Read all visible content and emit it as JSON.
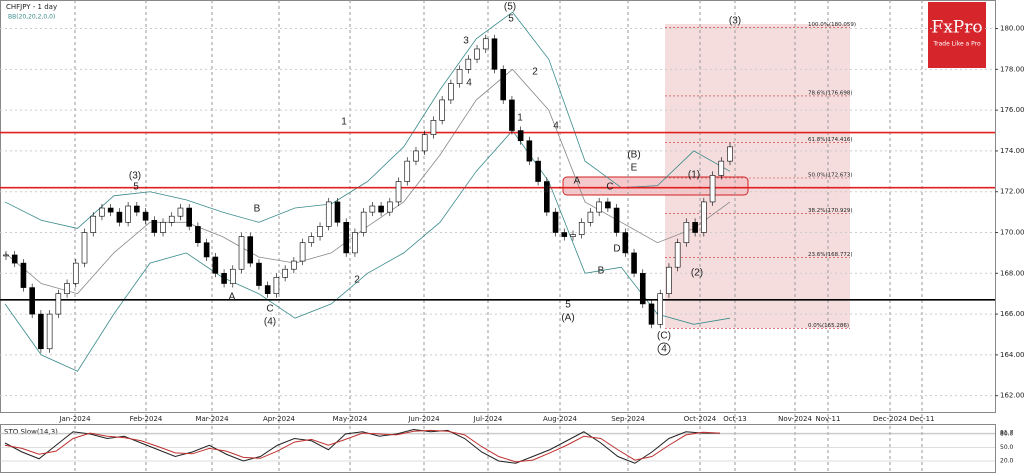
{
  "chart_data": {
    "type": "candlestick",
    "title": "CHFJPY - 1 day",
    "subtitle": "BB(20,20,2,0,0)",
    "brand": {
      "name": "FxPro",
      "tagline": "Trade Like a Pro"
    },
    "xticks": [
      "Jan-2024",
      "Feb-2024",
      "Mar-2024",
      "Apr-2024",
      "May-2024",
      "Jun-2024",
      "Jul-2024",
      "Aug-2024",
      "Sep-2024",
      "Oct-2024",
      "Oct-13",
      "Nov-2024",
      "Nov-11",
      "Dec-2024",
      "Dec-11"
    ],
    "ylim": [
      161.2,
      181.4
    ],
    "yticks": [
      {
        "value": 162,
        "label": "162.000"
      },
      {
        "value": 164,
        "label": "164.000"
      },
      {
        "value": 166,
        "label": "166.000"
      },
      {
        "value": 168,
        "label": "168.000"
      },
      {
        "value": 170,
        "label": "170.000"
      },
      {
        "value": 172,
        "label": "172.000"
      },
      {
        "value": 174,
        "label": "174.000"
      },
      {
        "value": 176,
        "label": "176.000"
      },
      {
        "value": 178,
        "label": "178.000"
      },
      {
        "value": 180,
        "label": "180.000"
      }
    ],
    "grid": true,
    "series": [
      {
        "name": "CHFJPY",
        "values": [
          168.9,
          168.5,
          167.3,
          166.0,
          164.3,
          166.0,
          167.0,
          167.5,
          168.5,
          170.0,
          170.8,
          171.2,
          171.0,
          170.5,
          171.3,
          171.0,
          170.6,
          170.0,
          170.5,
          170.8,
          171.2,
          170.3,
          169.5,
          168.8,
          168.0,
          167.5,
          168.2,
          169.8,
          168.5,
          167.4,
          167.0,
          167.8,
          168.2,
          168.6,
          169.5,
          169.8,
          170.3,
          171.5,
          170.5,
          169.0,
          170.0,
          171.0,
          171.3,
          171.0,
          171.5,
          172.5,
          173.5,
          174.0,
          174.8,
          175.5,
          176.5,
          177.3,
          178.0,
          178.5,
          179.0,
          179.5,
          178.0,
          176.5,
          175.0,
          174.5,
          173.5,
          172.5,
          171.0,
          170.0,
          169.8,
          169.9,
          170.5,
          171.0,
          171.5,
          171.2,
          170.0,
          169.0,
          168.0,
          166.5,
          165.5,
          167.0,
          168.3,
          169.5,
          170.5,
          170.0,
          171.5,
          172.8,
          173.5,
          174.2
        ]
      }
    ],
    "bands": [
      {
        "name": "upper",
        "color": "#3a8a8a",
        "values": [
          171.5,
          170.6,
          170.2,
          171.8,
          172.0,
          171.6,
          171.0,
          170.5,
          171.2,
          171.4,
          172.5,
          174.2,
          177.0,
          179.5,
          180.8,
          178.5,
          173.5,
          172.2,
          172.3,
          174.0,
          173.0
        ]
      },
      {
        "name": "middle",
        "color": "#888888",
        "values": [
          169.0,
          167.5,
          167.0,
          169.0,
          170.5,
          170.5,
          169.8,
          168.8,
          168.5,
          169.0,
          170.3,
          171.5,
          173.8,
          176.5,
          178.0,
          176.0,
          171.5,
          170.5,
          169.5,
          170.2,
          171.5
        ]
      },
      {
        "name": "lower",
        "color": "#3a8a8a",
        "values": [
          166.5,
          164.0,
          163.2,
          166.0,
          168.5,
          169.0,
          167.8,
          167.0,
          165.8,
          166.5,
          168.0,
          169.0,
          170.5,
          173.0,
          175.0,
          172.5,
          168.0,
          168.3,
          166.0,
          165.5,
          165.8
        ]
      }
    ],
    "levels": [
      {
        "value": 174.9,
        "color": "#e02020"
      },
      {
        "value": 172.2,
        "color": "#e02020"
      },
      {
        "value": 166.7,
        "color": "#000000"
      }
    ],
    "fib": [
      {
        "value": 180.059,
        "label": "100.0%(180.059)"
      },
      {
        "value": 176.698,
        "label": "78.6%(176.698)"
      },
      {
        "value": 174.416,
        "label": "61.8%(174.416)"
      },
      {
        "value": 172.673,
        "label": "50.0%(172.673)"
      },
      {
        "value": 170.929,
        "label": "38.2%(170.929)"
      },
      {
        "value": 168.772,
        "label": "23.6%(168.772)"
      },
      {
        "value": 165.286,
        "label": "0.0%(165.286)"
      }
    ],
    "annotations": [
      "(5)",
      "5",
      "3",
      "4",
      "2",
      "1",
      "4",
      "3",
      "5",
      "(A)",
      "A",
      "C",
      "(B)",
      "E",
      "D",
      "B",
      "(1)",
      "(2)",
      "(C)",
      "4",
      "(3)",
      "1",
      "2",
      "(3)",
      "5",
      "B",
      "A",
      "C",
      "(4)"
    ],
    "oscillator": {
      "title": "STO Slow(14,3)",
      "ylim": [
        0,
        100
      ],
      "yticks": [
        {
          "value": 81.7,
          "label": "81.7"
        },
        {
          "value": 80,
          "label": "80.0"
        },
        {
          "value": 50,
          "label": "50.0"
        },
        {
          "value": 20,
          "label": "20.0"
        }
      ],
      "series": [
        {
          "name": "%K",
          "color": "#222222",
          "values": [
            60,
            40,
            25,
            55,
            85,
            80,
            70,
            75,
            60,
            45,
            30,
            40,
            55,
            35,
            20,
            30,
            55,
            70,
            65,
            45,
            80,
            85,
            75,
            80,
            90,
            85,
            88,
            70,
            40,
            20,
            15,
            30,
            45,
            65,
            85,
            60,
            30,
            15,
            40,
            70,
            85,
            82,
            81.7
          ]
        },
        {
          "name": "%D",
          "color": "#c03030",
          "values": [
            55,
            48,
            35,
            42,
            70,
            82,
            75,
            72,
            65,
            52,
            38,
            36,
            48,
            42,
            28,
            26,
            42,
            62,
            68,
            55,
            68,
            82,
            80,
            78,
            86,
            88,
            86,
            78,
            52,
            30,
            18,
            22,
            38,
            55,
            75,
            70,
            45,
            22,
            30,
            55,
            78,
            84,
            82
          ]
        }
      ]
    }
  }
}
